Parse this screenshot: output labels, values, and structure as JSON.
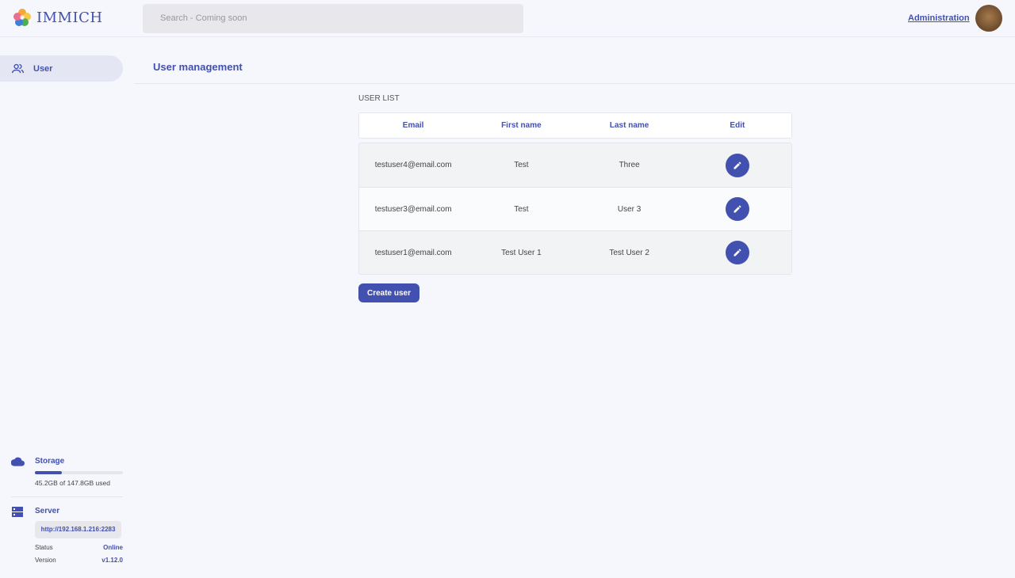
{
  "header": {
    "app_name": "IMMICH",
    "search_placeholder": "Search - Coming soon",
    "admin_link": "Administration"
  },
  "sidebar": {
    "items": [
      {
        "label": "User",
        "icon": "users-icon"
      }
    ],
    "storage": {
      "label": "Storage",
      "used_text": "45.2GB of 147.8GB used",
      "used_fraction": 0.306
    },
    "server": {
      "label": "Server",
      "url": "http://192.168.1.216:2283",
      "status_label": "Status",
      "status": "Online",
      "version_label": "Version",
      "version": "v1.12.0"
    }
  },
  "main": {
    "title": "User management",
    "list_label": "USER LIST",
    "columns": [
      "Email",
      "First name",
      "Last name",
      "Edit"
    ],
    "rows": [
      {
        "email": "testuser4@email.com",
        "first": "Test",
        "last": "Three"
      },
      {
        "email": "testuser3@email.com",
        "first": "Test",
        "last": "User 3"
      },
      {
        "email": "testuser1@email.com",
        "first": "Test User 1",
        "last": "Test User 2"
      }
    ],
    "create_label": "Create user"
  },
  "colors": {
    "accent": "#4250af"
  }
}
